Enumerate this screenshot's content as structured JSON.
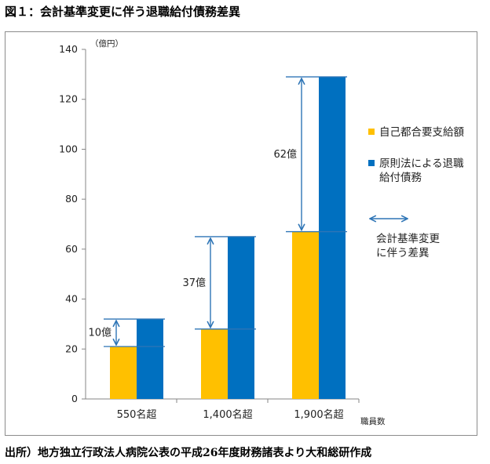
{
  "figure_title": "図１：会計基準変更に伴う退職給付債務差異",
  "source_note": "出所）地方独立行政法人病院公表の平成26年度財務諸表より大和総研作成",
  "chart_data": {
    "type": "bar",
    "y_unit": "（億円）",
    "x_unit": "職員数",
    "categories": [
      "550名超",
      "1,400名超",
      "1,900名超"
    ],
    "series": [
      {
        "name": "自己都合要支給額",
        "color": "#ffc000",
        "values": [
          21,
          28,
          67
        ]
      },
      {
        "name": "原則法による退職給付債務",
        "color": "#0070c0",
        "values": [
          32,
          65,
          129
        ]
      }
    ],
    "legend_lines": [
      [
        "自己都合要支給額"
      ],
      [
        "原則法による退職",
        "給付債務"
      ]
    ],
    "difference_legend": [
      "会計基準変更",
      "に伴う差異"
    ],
    "difference_color": "#2e75b6",
    "differences": [
      {
        "label": "10億",
        "from": 21,
        "to": 32
      },
      {
        "label": "37億",
        "from": 28,
        "to": 65
      },
      {
        "label": "62億",
        "from": 67,
        "to": 129
      }
    ],
    "ylim": [
      0,
      140
    ],
    "yticks": [
      0,
      20,
      40,
      60,
      80,
      100,
      120,
      140
    ],
    "legend_position": "right",
    "grid": false
  }
}
